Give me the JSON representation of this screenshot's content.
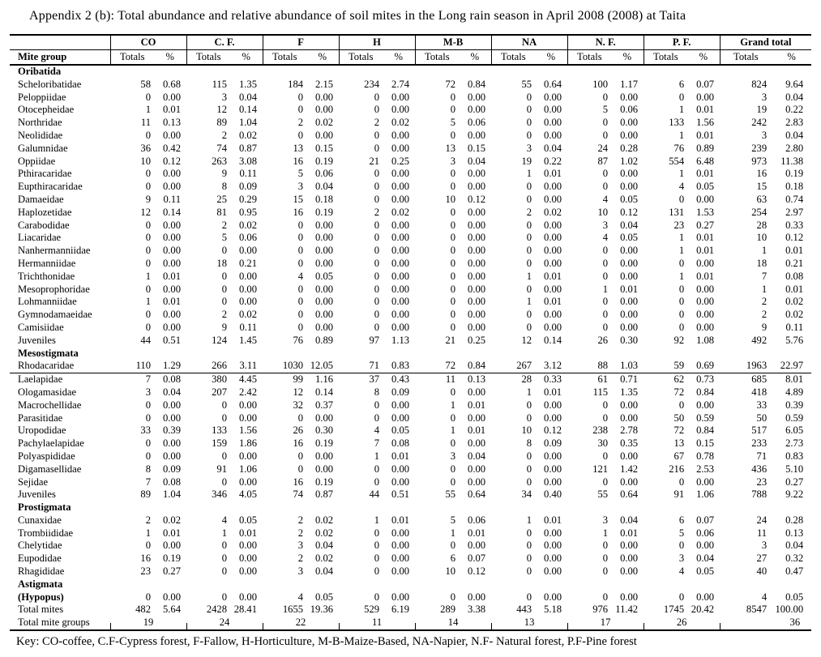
{
  "title": "Appendix 2 (b): Total abundance and relative abundance of soil mites in the Long rain season in April 2008  (2008) at Taita",
  "key_legend": "Key: CO-coffee, C.F-Cypress forest, F-Fallow, H-Horticulture, M-B-Maize-Based, NA-Napier, N.F- Natural forest, P.F-Pine forest",
  "table": {
    "row_header": "Mite group",
    "groups": [
      "CO",
      "C. F.",
      "F",
      "H",
      "M-B",
      "NA",
      "N. F.",
      "P. F.",
      "Grand total"
    ],
    "sub_totals": "Totals",
    "sub_percent": "%",
    "sections": [
      {
        "name": "Oribatida",
        "rows": [
          {
            "name": "Scheloribatidae",
            "values": [
              "58",
              "0.68",
              "115",
              "1.35",
              "184",
              "2.15",
              "234",
              "2.74",
              "72",
              "0.84",
              "55",
              "0.64",
              "100",
              "1.17",
              "6",
              "0.07",
              "824",
              "9.64"
            ]
          },
          {
            "name": "Peloppiidae",
            "values": [
              "0",
              "0.00",
              "3",
              "0.04",
              "0",
              "0.00",
              "0",
              "0.00",
              "0",
              "0.00",
              "0",
              "0.00",
              "0",
              "0.00",
              "0",
              "0.00",
              "3",
              "0.04"
            ]
          },
          {
            "name": "Otocepheidae",
            "values": [
              "1",
              "0.01",
              "12",
              "0.14",
              "0",
              "0.00",
              "0",
              "0.00",
              "0",
              "0.00",
              "0",
              "0.00",
              "5",
              "0.06",
              "1",
              "0.01",
              "19",
              "0.22"
            ]
          },
          {
            "name": "Northridae",
            "values": [
              "11",
              "0.13",
              "89",
              "1.04",
              "2",
              "0.02",
              "2",
              "0.02",
              "5",
              "0.06",
              "0",
              "0.00",
              "0",
              "0.00",
              "133",
              "1.56",
              "242",
              "2.83"
            ]
          },
          {
            "name": "Neolididae",
            "values": [
              "0",
              "0.00",
              "2",
              "0.02",
              "0",
              "0.00",
              "0",
              "0.00",
              "0",
              "0.00",
              "0",
              "0.00",
              "0",
              "0.00",
              "1",
              "0.01",
              "3",
              "0.04"
            ]
          },
          {
            "name": "Galumnidae",
            "values": [
              "36",
              "0.42",
              "74",
              "0.87",
              "13",
              "0.15",
              "0",
              "0.00",
              "13",
              "0.15",
              "3",
              "0.04",
              "24",
              "0.28",
              "76",
              "0.89",
              "239",
              "2.80"
            ]
          },
          {
            "name": "Oppiidae",
            "values": [
              "10",
              "0.12",
              "263",
              "3.08",
              "16",
              "0.19",
              "21",
              "0.25",
              "3",
              "0.04",
              "19",
              "0.22",
              "87",
              "1.02",
              "554",
              "6.48",
              "973",
              "11.38"
            ]
          },
          {
            "name": "Pthiracaridae",
            "values": [
              "0",
              "0.00",
              "9",
              "0.11",
              "5",
              "0.06",
              "0",
              "0.00",
              "0",
              "0.00",
              "1",
              "0.01",
              "0",
              "0.00",
              "1",
              "0.01",
              "16",
              "0.19"
            ]
          },
          {
            "name": "Eupthiracaridae",
            "values": [
              "0",
              "0.00",
              "8",
              "0.09",
              "3",
              "0.04",
              "0",
              "0.00",
              "0",
              "0.00",
              "0",
              "0.00",
              "0",
              "0.00",
              "4",
              "0.05",
              "15",
              "0.18"
            ]
          },
          {
            "name": "Damaeidae",
            "values": [
              "9",
              "0.11",
              "25",
              "0.29",
              "15",
              "0.18",
              "0",
              "0.00",
              "10",
              "0.12",
              "0",
              "0.00",
              "4",
              "0.05",
              "0",
              "0.00",
              "63",
              "0.74"
            ]
          },
          {
            "name": "Haplozetidae",
            "values": [
              "12",
              "0.14",
              "81",
              "0.95",
              "16",
              "0.19",
              "2",
              "0.02",
              "0",
              "0.00",
              "2",
              "0.02",
              "10",
              "0.12",
              "131",
              "1.53",
              "254",
              "2.97"
            ]
          },
          {
            "name": "Carabodidae",
            "values": [
              "0",
              "0.00",
              "2",
              "0.02",
              "0",
              "0.00",
              "0",
              "0.00",
              "0",
              "0.00",
              "0",
              "0.00",
              "3",
              "0.04",
              "23",
              "0.27",
              "28",
              "0.33"
            ]
          },
          {
            "name": "Liacaridae",
            "values": [
              "0",
              "0.00",
              "5",
              "0.06",
              "0",
              "0.00",
              "0",
              "0.00",
              "0",
              "0.00",
              "0",
              "0.00",
              "4",
              "0.05",
              "1",
              "0.01",
              "10",
              "0.12"
            ]
          },
          {
            "name": "Nanhermanniidae",
            "values": [
              "0",
              "0.00",
              "0",
              "0.00",
              "0",
              "0.00",
              "0",
              "0.00",
              "0",
              "0.00",
              "0",
              "0.00",
              "0",
              "0.00",
              "1",
              "0.01",
              "1",
              "0.01"
            ]
          },
          {
            "name": "Hermanniidae",
            "values": [
              "0",
              "0.00",
              "18",
              "0.21",
              "0",
              "0.00",
              "0",
              "0.00",
              "0",
              "0.00",
              "0",
              "0.00",
              "0",
              "0.00",
              "0",
              "0.00",
              "18",
              "0.21"
            ]
          },
          {
            "name": "Trichthonidae",
            "values": [
              "1",
              "0.01",
              "0",
              "0.00",
              "4",
              "0.05",
              "0",
              "0.00",
              "0",
              "0.00",
              "1",
              "0.01",
              "0",
              "0.00",
              "1",
              "0.01",
              "7",
              "0.08"
            ]
          },
          {
            "name": "Mesoprophoridae",
            "values": [
              "0",
              "0.00",
              "0",
              "0.00",
              "0",
              "0.00",
              "0",
              "0.00",
              "0",
              "0.00",
              "0",
              "0.00",
              "1",
              "0.01",
              "0",
              "0.00",
              "1",
              "0.01"
            ]
          },
          {
            "name": "Lohmanniidae",
            "values": [
              "1",
              "0.01",
              "0",
              "0.00",
              "0",
              "0.00",
              "0",
              "0.00",
              "0",
              "0.00",
              "1",
              "0.01",
              "0",
              "0.00",
              "0",
              "0.00",
              "2",
              "0.02"
            ]
          },
          {
            "name": "Gymnodamaeidae",
            "values": [
              "0",
              "0.00",
              "2",
              "0.02",
              "0",
              "0.00",
              "0",
              "0.00",
              "0",
              "0.00",
              "0",
              "0.00",
              "0",
              "0.00",
              "0",
              "0.00",
              "2",
              "0.02"
            ]
          },
          {
            "name": "Camisiidae",
            "values": [
              "0",
              "0.00",
              "9",
              "0.11",
              "0",
              "0.00",
              "0",
              "0.00",
              "0",
              "0.00",
              "0",
              "0.00",
              "0",
              "0.00",
              "0",
              "0.00",
              "9",
              "0.11"
            ]
          },
          {
            "name": "Juveniles",
            "values": [
              "44",
              "0.51",
              "124",
              "1.45",
              "76",
              "0.89",
              "97",
              "1.13",
              "21",
              "0.25",
              "12",
              "0.14",
              "26",
              "0.30",
              "92",
              "1.08",
              "492",
              "5.76"
            ]
          }
        ]
      },
      {
        "name": "Mesostigmata",
        "rows": [
          {
            "name": "Rhodacaridae",
            "rule_below": true,
            "values": [
              "110",
              "1.29",
              "266",
              "3.11",
              "1030",
              "12.05",
              "71",
              "0.83",
              "72",
              "0.84",
              "267",
              "3.12",
              "88",
              "1.03",
              "59",
              "0.69",
              "1963",
              "22.97"
            ]
          },
          {
            "name": "Laelapidae",
            "values": [
              "7",
              "0.08",
              "380",
              "4.45",
              "99",
              "1.16",
              "37",
              "0.43",
              "11",
              "0.13",
              "28",
              "0.33",
              "61",
              "0.71",
              "62",
              "0.73",
              "685",
              "8.01"
            ]
          },
          {
            "name": "Ologamasidae",
            "values": [
              "3",
              "0.04",
              "207",
              "2.42",
              "12",
              "0.14",
              "8",
              "0.09",
              "0",
              "0.00",
              "1",
              "0.01",
              "115",
              "1.35",
              "72",
              "0.84",
              "418",
              "4.89"
            ]
          },
          {
            "name": "Macrochellidae",
            "values": [
              "0",
              "0.00",
              "0",
              "0.00",
              "32",
              "0.37",
              "0",
              "0.00",
              "1",
              "0.01",
              "0",
              "0.00",
              "0",
              "0.00",
              "0",
              "0.00",
              "33",
              "0.39"
            ]
          },
          {
            "name": "Parasitidae",
            "values": [
              "0",
              "0.00",
              "0",
              "0.00",
              "0",
              "0.00",
              "0",
              "0.00",
              "0",
              "0.00",
              "0",
              "0.00",
              "0",
              "0.00",
              "50",
              "0.59",
              "50",
              "0.59"
            ]
          },
          {
            "name": "Uropodidae",
            "values": [
              "33",
              "0.39",
              "133",
              "1.56",
              "26",
              "0.30",
              "4",
              "0.05",
              "1",
              "0.01",
              "10",
              "0.12",
              "238",
              "2.78",
              "72",
              "0.84",
              "517",
              "6.05"
            ]
          },
          {
            "name": "Pachylaelapidae",
            "values": [
              "0",
              "0.00",
              "159",
              "1.86",
              "16",
              "0.19",
              "7",
              "0.08",
              "0",
              "0.00",
              "8",
              "0.09",
              "30",
              "0.35",
              "13",
              "0.15",
              "233",
              "2.73"
            ]
          },
          {
            "name": "Polyaspididae",
            "values": [
              "0",
              "0.00",
              "0",
              "0.00",
              "0",
              "0.00",
              "1",
              "0.01",
              "3",
              "0.04",
              "0",
              "0.00",
              "0",
              "0.00",
              "67",
              "0.78",
              "71",
              "0.83"
            ]
          },
          {
            "name": "Digamasellidae",
            "values": [
              "8",
              "0.09",
              "91",
              "1.06",
              "0",
              "0.00",
              "0",
              "0.00",
              "0",
              "0.00",
              "0",
              "0.00",
              "121",
              "1.42",
              "216",
              "2.53",
              "436",
              "5.10"
            ]
          },
          {
            "name": "Sejidae",
            "values": [
              "7",
              "0.08",
              "0",
              "0.00",
              "16",
              "0.19",
              "0",
              "0.00",
              "0",
              "0.00",
              "0",
              "0.00",
              "0",
              "0.00",
              "0",
              "0.00",
              "23",
              "0.27"
            ]
          },
          {
            "name": "Juveniles",
            "values": [
              "89",
              "1.04",
              "346",
              "4.05",
              "74",
              "0.87",
              "44",
              "0.51",
              "55",
              "0.64",
              "34",
              "0.40",
              "55",
              "0.64",
              "91",
              "1.06",
              "788",
              "9.22"
            ]
          }
        ]
      },
      {
        "name": "Prostigmata",
        "rows": [
          {
            "name": "Cunaxidae",
            "values": [
              "2",
              "0.02",
              "4",
              "0.05",
              "2",
              "0.02",
              "1",
              "0.01",
              "5",
              "0.06",
              "1",
              "0.01",
              "3",
              "0.04",
              "6",
              "0.07",
              "24",
              "0.28"
            ]
          },
          {
            "name": "Trombiididae",
            "values": [
              "1",
              "0.01",
              "1",
              "0.01",
              "2",
              "0.02",
              "0",
              "0.00",
              "1",
              "0.01",
              "0",
              "0.00",
              "1",
              "0.01",
              "5",
              "0.06",
              "11",
              "0.13"
            ]
          },
          {
            "name": "Chelytidae",
            "values": [
              "0",
              "0.00",
              "0",
              "0.00",
              "3",
              "0.04",
              "0",
              "0.00",
              "0",
              "0.00",
              "0",
              "0.00",
              "0",
              "0.00",
              "0",
              "0.00",
              "3",
              "0.04"
            ]
          },
          {
            "name": "Eupodidae",
            "values": [
              "16",
              "0.19",
              "0",
              "0.00",
              "2",
              "0.02",
              "0",
              "0.00",
              "6",
              "0.07",
              "0",
              "0.00",
              "0",
              "0.00",
              "3",
              "0.04",
              "27",
              "0.32"
            ]
          },
          {
            "name": "Rhagididae",
            "values": [
              "23",
              "0.27",
              "0",
              "0.00",
              "3",
              "0.04",
              "0",
              "0.00",
              "10",
              "0.12",
              "0",
              "0.00",
              "0",
              "0.00",
              "4",
              "0.05",
              "40",
              "0.47"
            ]
          }
        ]
      },
      {
        "name": "Astigmata",
        "rows": [
          {
            "name": "(Hypopus)",
            "bold": true,
            "values": [
              "0",
              "0.00",
              "0",
              "0.00",
              "4",
              "0.05",
              "0",
              "0.00",
              "0",
              "0.00",
              "0",
              "0.00",
              "0",
              "0.00",
              "0",
              "0.00",
              "4",
              "0.05"
            ]
          }
        ]
      }
    ],
    "total_mites": {
      "label": "Total mites",
      "values": [
        "482",
        "5.64",
        "2428",
        "28.41",
        "1655",
        "19.36",
        "529",
        "6.19",
        "289",
        "3.38",
        "443",
        "5.18",
        "976",
        "11.42",
        "1745",
        "20.42",
        "8547",
        "100.00"
      ]
    },
    "total_mite_groups": {
      "label": "Total mite groups",
      "values": [
        "19",
        "24",
        "22",
        "11",
        "14",
        "13",
        "17",
        "26",
        "36"
      ]
    }
  }
}
